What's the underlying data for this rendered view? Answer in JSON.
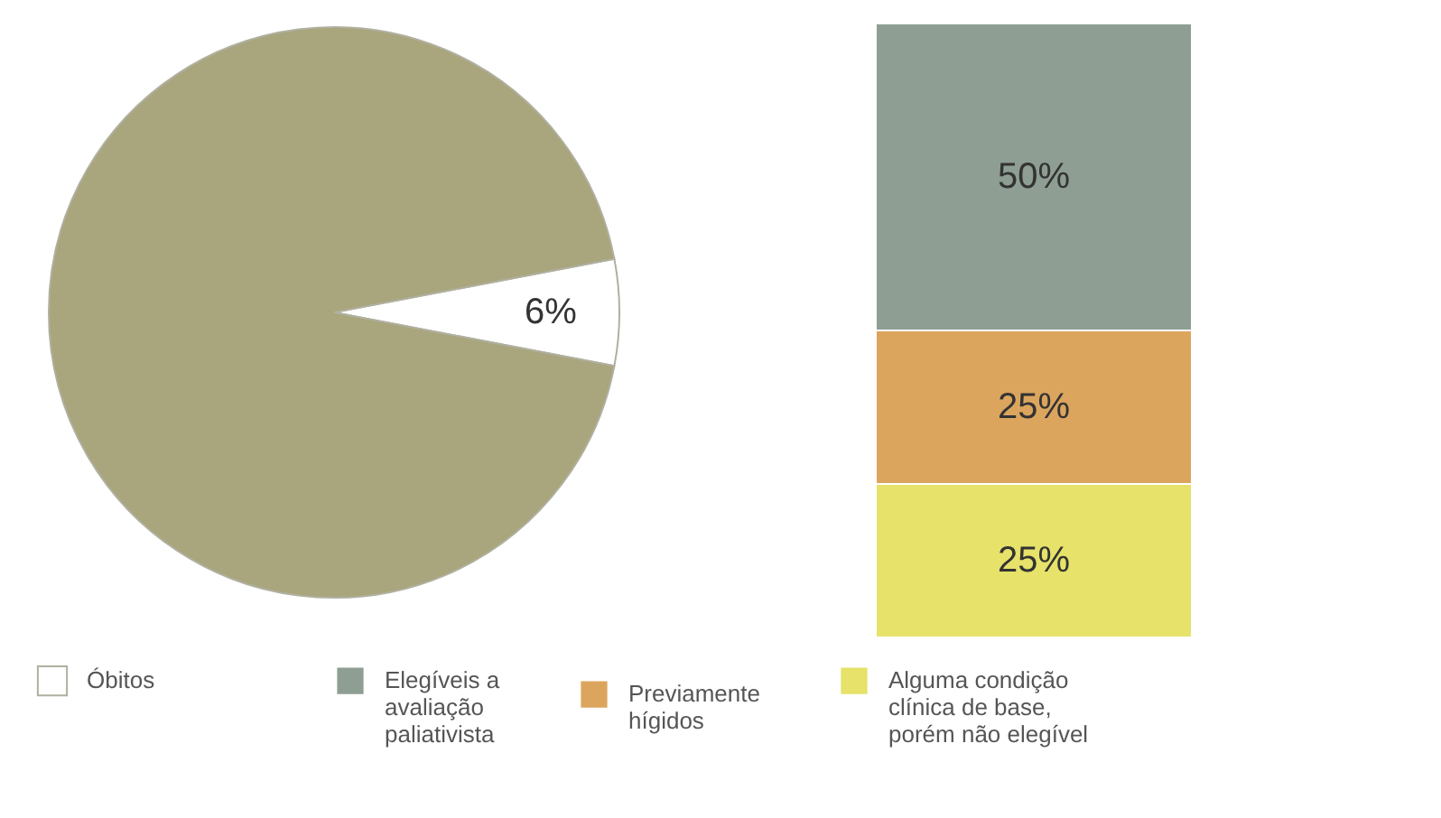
{
  "chart_data": [
    {
      "type": "pie",
      "categories": [
        "Óbitos",
        null
      ],
      "values": [
        6,
        94
      ],
      "colors": [
        "#ffffff",
        "#a9a57c"
      ],
      "value_labels": [
        "6%",
        null
      ],
      "legend": "bottom"
    },
    {
      "type": "bar",
      "stacked": true,
      "categories": [
        null
      ],
      "legend": "bottom",
      "series": [
        {
          "name": "Alguma condição clínica de base, porém não elegível",
          "color": "#e6e26a",
          "values": [
            25
          ],
          "value_labels": [
            "25%"
          ]
        },
        {
          "name": "Previamente hígidos",
          "color": "#dca55e",
          "values": [
            25
          ],
          "value_labels": [
            "25%"
          ]
        },
        {
          "name": "Elegíveis a avaliação paliativista",
          "color": "#8e9e93",
          "values": [
            50
          ],
          "value_labels": [
            "50%"
          ]
        }
      ]
    }
  ]
}
